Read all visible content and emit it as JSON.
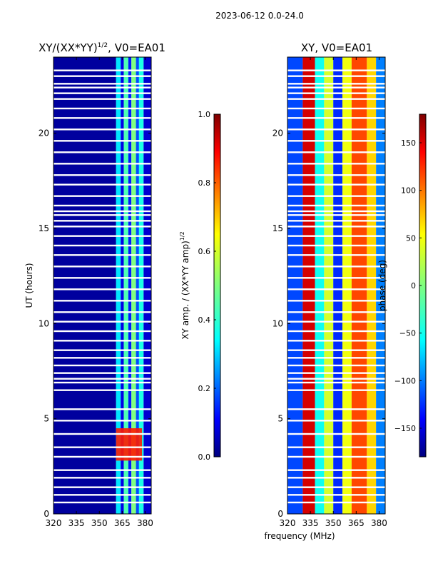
{
  "figure": {
    "suptitle": "2023-06-12 0.0-24.0",
    "xlabel": "frequency (MHz)"
  },
  "chart_data": [
    {
      "type": "heatmap",
      "title": "XY/(XX*YY)",
      "title_sup": "1/2",
      "title_rest": ", V0=EA01",
      "xlabel": "",
      "ylabel": "UT (hours)",
      "xlim": [
        320,
        384
      ],
      "ylim": [
        0,
        24
      ],
      "xticks": [
        320,
        335,
        350,
        365,
        380
      ],
      "yticks": [
        0,
        5,
        10,
        15,
        20
      ],
      "colorbar": {
        "label": "XY amp. / (XX*YY amp)",
        "label_sup": "1/2",
        "range": [
          0.0,
          1.0
        ],
        "ticks": [
          "0.0",
          "0.2",
          "0.4",
          "0.6",
          "0.8",
          "1.0"
        ],
        "colormap": "jet"
      },
      "note": "Values near 0 (dark blue) below ~361 MHz; ~0.3-0.6 in bands 361-384 MHz; ~0.8-0.9 around 2.8-4.5 UT at 361-378 MHz",
      "bands": [
        {
          "freq_range": [
            320,
            361
          ],
          "level": 0.03
        },
        {
          "freq_range": [
            361,
            364
          ],
          "level": 0.35
        },
        {
          "freq_range": [
            364,
            366
          ],
          "level": 0.1
        },
        {
          "freq_range": [
            366,
            369
          ],
          "level": 0.45
        },
        {
          "freq_range": [
            369,
            371
          ],
          "level": 0.15
        },
        {
          "freq_range": [
            371,
            374
          ],
          "level": 0.5
        },
        {
          "freq_range": [
            374,
            376
          ],
          "level": 0.2
        },
        {
          "freq_range": [
            376,
            379
          ],
          "level": 0.4
        },
        {
          "freq_range": [
            379,
            384
          ],
          "level": 0.08
        }
      ],
      "hot_region": {
        "freq_range": [
          361,
          378
        ],
        "ut_range": [
          2.8,
          4.5
        ],
        "level": 0.85
      }
    },
    {
      "type": "heatmap",
      "title": "XY, V0=EA01",
      "xlabel": "frequency (MHz)",
      "ylabel": "",
      "xlim": [
        320,
        384
      ],
      "ylim": [
        0,
        24
      ],
      "xticks": [
        320,
        335,
        350,
        365,
        380
      ],
      "yticks": [
        0,
        5,
        10,
        15,
        20
      ],
      "colorbar": {
        "label": "phase (deg)",
        "range": [
          -180,
          180
        ],
        "ticks": [
          "150",
          "100",
          "50",
          "0",
          "−50",
          "−100",
          "−150"
        ],
        "tick_values": [
          150,
          100,
          50,
          0,
          -50,
          -100,
          -150
        ],
        "colormap": "jet"
      },
      "bands": [
        {
          "freq_range": [
            320,
            330
          ],
          "level": -110
        },
        {
          "freq_range": [
            330,
            338
          ],
          "level": 150
        },
        {
          "freq_range": [
            338,
            344
          ],
          "level": -40
        },
        {
          "freq_range": [
            344,
            350
          ],
          "level": 30
        },
        {
          "freq_range": [
            350,
            356
          ],
          "level": -120
        },
        {
          "freq_range": [
            356,
            362
          ],
          "level": 40
        },
        {
          "freq_range": [
            362,
            372
          ],
          "level": 110
        },
        {
          "freq_range": [
            372,
            378
          ],
          "level": 60
        },
        {
          "freq_range": [
            378,
            384
          ],
          "level": -90
        }
      ]
    }
  ],
  "gaps_ut": [
    0.6,
    1.0,
    1.4,
    1.9,
    2.3,
    3.0,
    3.5,
    4.2,
    4.9,
    5.5,
    6.5,
    6.9,
    7.1,
    7.4,
    7.8,
    8.2,
    8.6,
    9.1,
    9.6,
    10.1,
    10.6,
    11.2,
    11.8,
    12.4,
    13.0,
    13.6,
    14.1,
    14.6,
    15.1,
    15.4,
    15.7,
    15.9,
    16.2,
    16.7,
    17.3,
    17.8,
    18.4,
    19.0,
    19.6,
    20.2,
    20.8,
    21.3,
    21.8,
    22.1,
    22.4,
    22.6,
    23.0,
    23.3
  ]
}
